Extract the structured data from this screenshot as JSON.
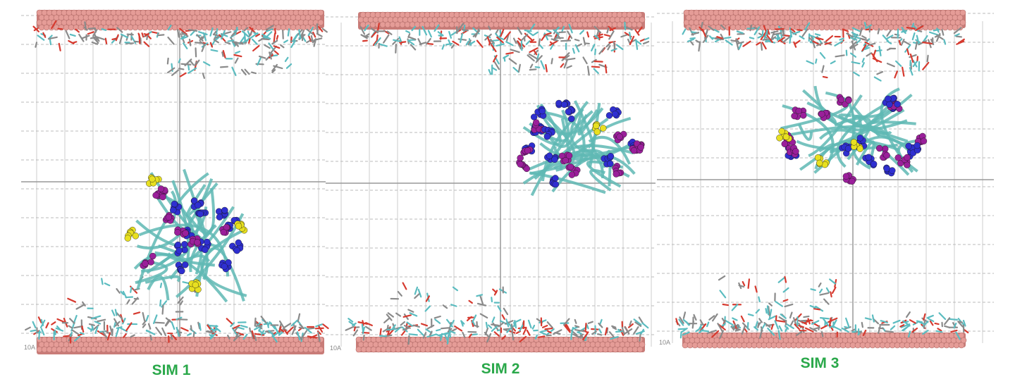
{
  "panels": [
    {
      "label": "SIM 1",
      "scale_label": "10A"
    },
    {
      "label": "SIM 2",
      "scale_label": "10A"
    },
    {
      "label": "SIM 3",
      "scale_label": "10A"
    }
  ]
}
